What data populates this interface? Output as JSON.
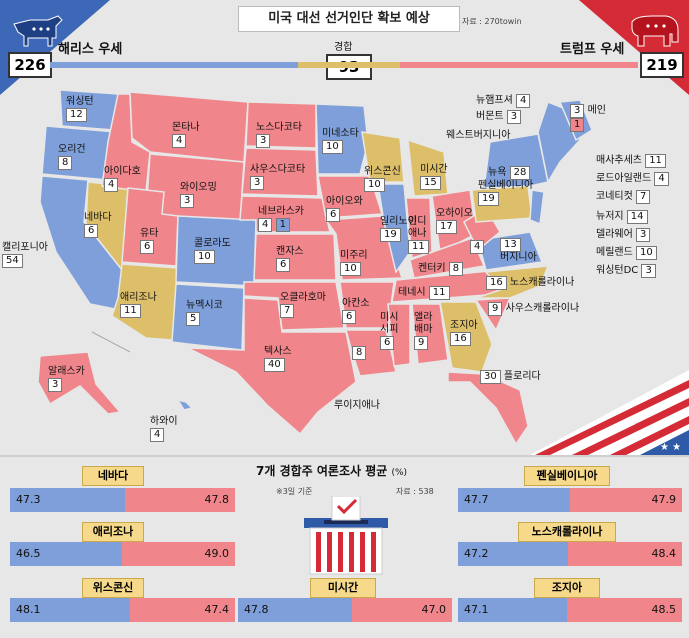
{
  "header": {
    "title": "미국 대선 선거인단 확보 예상",
    "source": "자료 : 270towin",
    "harris_label": "해리스 우세",
    "trump_label": "트럼프 우세",
    "swing_label": "경합",
    "harris_count": "226",
    "swing_count": "93",
    "trump_count": "219"
  },
  "states": [
    {
      "name": "워싱턴",
      "ev": "12"
    },
    {
      "name": "오리건",
      "ev": "8"
    },
    {
      "name": "캘리포니아",
      "ev": "54"
    },
    {
      "name": "네바다",
      "ev": "6"
    },
    {
      "name": "아이다호",
      "ev": "4"
    },
    {
      "name": "몬타나",
      "ev": "4"
    },
    {
      "name": "와이오밍",
      "ev": "3"
    },
    {
      "name": "유타",
      "ev": "6"
    },
    {
      "name": "애리조나",
      "ev": "11"
    },
    {
      "name": "콜로라도",
      "ev": "10"
    },
    {
      "name": "뉴멕시코",
      "ev": "5"
    },
    {
      "name": "노스다코타",
      "ev": "3"
    },
    {
      "name": "사우스다코타",
      "ev": "3"
    },
    {
      "name": "네브라스카",
      "ev": "4"
    },
    {
      "name": "네브라스카-2",
      "ev": "1"
    },
    {
      "name": "캔자스",
      "ev": "6"
    },
    {
      "name": "오클라호마",
      "ev": "7"
    },
    {
      "name": "텍사스",
      "ev": "40"
    },
    {
      "name": "미네소타",
      "ev": "10"
    },
    {
      "name": "아이오와",
      "ev": "6"
    },
    {
      "name": "미주리",
      "ev": "10"
    },
    {
      "name": "아칸소",
      "ev": "6"
    },
    {
      "name": "루이지애나",
      "ev": "8"
    },
    {
      "name": "위스콘신",
      "ev": "10"
    },
    {
      "name": "일리노이",
      "ev": "19"
    },
    {
      "name": "미시간",
      "ev": "15"
    },
    {
      "name": "인디애나",
      "ev": "11"
    },
    {
      "name": "오하이오",
      "ev": "17"
    },
    {
      "name": "켄터키",
      "ev": "8"
    },
    {
      "name": "테네시",
      "ev": "11"
    },
    {
      "name": "미시시피",
      "ev": "6"
    },
    {
      "name": "앨라배마",
      "ev": "9"
    },
    {
      "name": "조지아",
      "ev": "16"
    },
    {
      "name": "플로리다",
      "ev": "30"
    },
    {
      "name": "사우스캐롤라이나",
      "ev": "9"
    },
    {
      "name": "노스캐롤라이나",
      "ev": "16"
    },
    {
      "name": "버지니아",
      "ev": "13"
    },
    {
      "name": "웨스트버지니아",
      "ev": "4"
    },
    {
      "name": "펜실베이니아",
      "ev": "19"
    },
    {
      "name": "뉴욕",
      "ev": "28"
    },
    {
      "name": "뉴햄프셔",
      "ev": "4"
    },
    {
      "name": "버몬트",
      "ev": "3"
    },
    {
      "name": "메인",
      "ev": "3"
    },
    {
      "name": "메인-2",
      "ev": "1"
    },
    {
      "name": "매사추세츠",
      "ev": "11"
    },
    {
      "name": "로드아일랜드",
      "ev": "4"
    },
    {
      "name": "코네티컷",
      "ev": "7"
    },
    {
      "name": "뉴저지",
      "ev": "14"
    },
    {
      "name": "델라웨어",
      "ev": "3"
    },
    {
      "name": "메릴랜드",
      "ev": "10"
    },
    {
      "name": "워싱턴DC",
      "ev": "3"
    },
    {
      "name": "알래스카",
      "ev": "3"
    },
    {
      "name": "하와이",
      "ev": "4"
    }
  ],
  "poll": {
    "title": "7개 경합주 여론조사 평균",
    "unit": "(%)",
    "date_note": "※3일 기준",
    "source": "자료 : 538",
    "states": [
      {
        "name": "네바다",
        "harris": "47.3",
        "trump": "47.8"
      },
      {
        "name": "애리조나",
        "harris": "46.5",
        "trump": "49.0"
      },
      {
        "name": "위스콘신",
        "harris": "48.1",
        "trump": "47.4"
      },
      {
        "name": "미시간",
        "harris": "47.8",
        "trump": "47.0"
      },
      {
        "name": "펜실베이니아",
        "harris": "47.7",
        "trump": "47.9"
      },
      {
        "name": "노스캐롤라이나",
        "harris": "47.2",
        "trump": "48.4"
      },
      {
        "name": "조지아",
        "harris": "47.1",
        "trump": "48.5"
      }
    ]
  },
  "colors": {
    "democrat": "#7e9fd9",
    "republican": "#f0868b",
    "swing": "#ddbf6a",
    "dem_dark": "#2f5aa8",
    "rep_dark": "#c8202d"
  },
  "icons": {
    "harris": "donkey-icon",
    "trump": "elephant-icon",
    "ballot": "ballot-box-icon"
  }
}
